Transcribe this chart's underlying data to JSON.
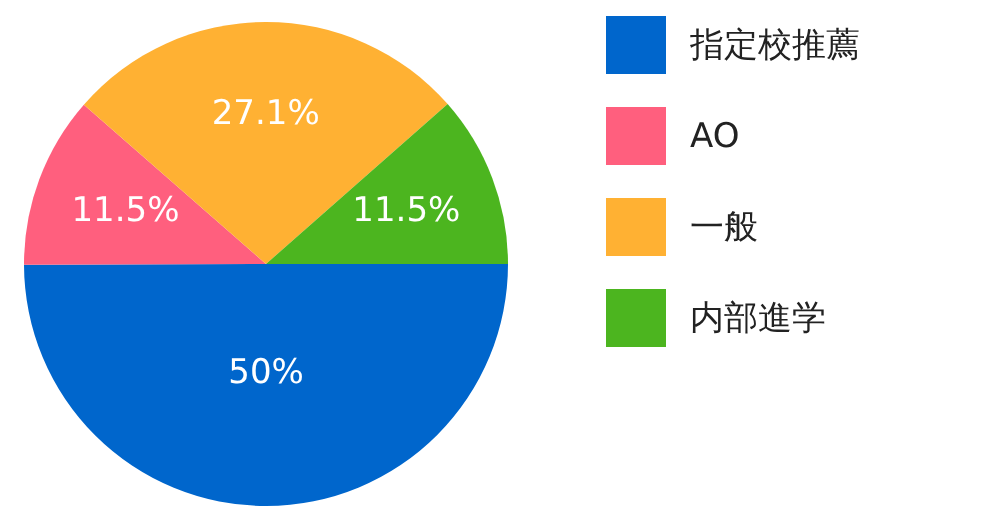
{
  "chart_data": {
    "type": "pie",
    "categories": [
      "指定校推薦",
      "AO",
      "一般",
      "内部進学"
    ],
    "values": [
      50,
      11.5,
      27.1,
      11.5
    ],
    "colors": [
      "#0066cc",
      "#ff5f7e",
      "#ffb133",
      "#4cb51f"
    ],
    "value_labels": [
      "50%",
      "11.5%",
      "27.1%",
      "11.5%"
    ],
    "legend": "right"
  }
}
